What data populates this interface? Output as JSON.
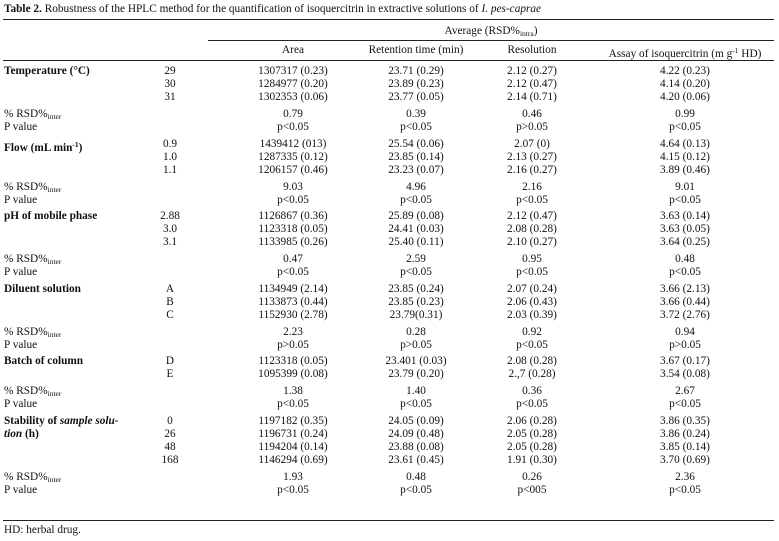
{
  "caption": {
    "label": "Table 2.",
    "text": " Robustness of the HPLC method for the quantification of isoquercitrin in extractive solutions of ",
    "species": "I. pes-caprae"
  },
  "header": {
    "average": "Average (RSD%",
    "average_sub": "intra",
    "average_close": ")",
    "columns": [
      "Area",
      "Retention time (min)",
      "Resolution",
      "Assay of isoquercitrin (m g"
    ],
    "assay_sup": "-1",
    "assay_tail": " HD)"
  },
  "stat_labels": {
    "rsd": "% RSD%",
    "rsd_sub": "inter",
    "pvalue": "P value"
  },
  "groups": [
    {
      "label": "Temperature (°C)",
      "rows": [
        [
          "29",
          "1307317 (0.23)",
          "23.71 (0.29)",
          "2.12 (0.27)",
          "4.22 (0.23)"
        ],
        [
          "30",
          "1284977 (0.20)",
          "23.89 (0.23)",
          "2.12 (0.47)",
          "4.14 (0.20)"
        ],
        [
          "31",
          "1302353 (0.06)",
          "23.77 (0.05)",
          "2.14 (0.71)",
          "4.20 (0.06)"
        ]
      ],
      "rsd": [
        "0.79",
        "0.39",
        "0.46",
        "0.99"
      ],
      "p": [
        "p<0.05",
        "p<0.05",
        "p>0.05",
        "p<0.05"
      ]
    },
    {
      "label": "Flow (mL min",
      "label_sup": "-1",
      "label_tail": ")",
      "rows": [
        [
          "0.9",
          "1439412 (013)",
          "25.54 (0.06)",
          "2.07 (0)",
          "4.64 (0.13)"
        ],
        [
          "1.0",
          "1287335 (0.12)",
          "23.85 (0.14)",
          "2.13 (0.27)",
          "4.15 (0.12)"
        ],
        [
          "1.1",
          "1206157 (0.46)",
          "23.23 (0.07)",
          "2.16 (0.27)",
          "3.89 (0.46)"
        ]
      ],
      "rsd": [
        "9.03",
        "4.96",
        "2.16",
        "9.01"
      ],
      "p": [
        "p<0.05",
        "p<0.05",
        "p<0.05",
        "p<0.05"
      ]
    },
    {
      "label": "pH of mobile phase",
      "rows": [
        [
          "2.88",
          "1126867 (0.36)",
          "25.89 (0.08)",
          "2.12 (0.47)",
          "3.63 (0.14)"
        ],
        [
          "3.0",
          "1123318 (0.05)",
          "24.41 (0.03)",
          "2.08 (0.28)",
          "3.63 (0.05)"
        ],
        [
          "3.1",
          "1133985 (0.26)",
          "25.40 (0.11)",
          "2.10 (0.27)",
          "3.64 (0.25)"
        ]
      ],
      "rsd": [
        "0.47",
        "2.59",
        "0.95",
        "0.48"
      ],
      "p": [
        "p<0.05",
        "p<0.05",
        "p<0.05",
        "p<0.05"
      ]
    },
    {
      "label": "Diluent solution",
      "rows": [
        [
          "A",
          "1134949 (2.14)",
          "23.85 (0.24)",
          "2.07 (0.24)",
          "3.66 (2.13)"
        ],
        [
          "B",
          "1133873 (0.44)",
          "23.85 (0.23)",
          "2.06 (0.43)",
          "3.66 (0.44)"
        ],
        [
          "C",
          "1152930 (2.78)",
          "23.79(0.31)",
          "2.03 (0.39)",
          "3.72 (2.76)"
        ]
      ],
      "rsd": [
        "2.23",
        "0.28",
        "0.92",
        "0.94"
      ],
      "p": [
        "p>0.05",
        "p>0.05",
        "p<0.05",
        "p>0.05"
      ]
    },
    {
      "label": "Batch of column",
      "rows": [
        [
          "D",
          "1123318 (0.05)",
          "23.401 (0.03)",
          "2.08 (0.28)",
          "3.67 (0.17)"
        ],
        [
          "E",
          "1095399 (0.08)",
          "23.79 (0.20)",
          "2.,7 (0.28)",
          "3.54 (0.08)"
        ]
      ],
      "rsd": [
        "1.38",
        "1.40",
        "0.36",
        "2.67"
      ],
      "p": [
        "p<0.05",
        "p<0.05",
        "p<0.05",
        "p<0.05"
      ]
    },
    {
      "label": "Stability of ",
      "label_em": "sample solu-",
      "label2_em": "tion",
      "label2": " (h)",
      "rows": [
        [
          "0",
          "1197182 (0.35)",
          "24.05 (0.09)",
          "2.06 (0.28)",
          "3.86 (0.35)"
        ],
        [
          "26",
          "1196731 (0.24)",
          "24.09 (0.48)",
          "2.05 (0.28)",
          "3.86 (0.24)"
        ],
        [
          "48",
          "1194204 (0.14)",
          "23.88 (0.08)",
          "2.05 (0.28)",
          "3.85 (0.14)"
        ],
        [
          "168",
          "1146294 (0.69)",
          "23.61 (0.45)",
          "1.91 (0.30)",
          "3.70 (0.69)"
        ]
      ],
      "rsd": [
        "1.93",
        "0.48",
        "0.26",
        "2.36"
      ],
      "p": [
        "p<0.05",
        "p<0.05",
        "p<005",
        "p<0.05"
      ]
    }
  ],
  "footnote": "HD: herbal drug."
}
